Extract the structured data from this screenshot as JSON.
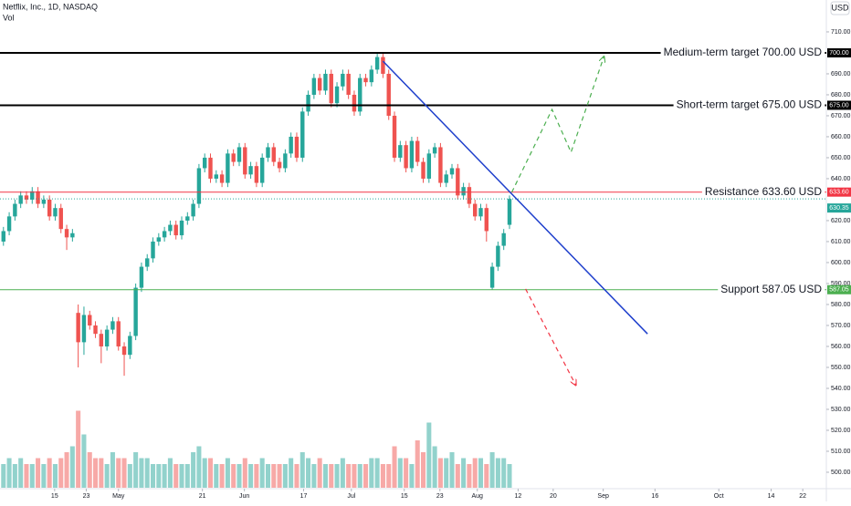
{
  "chart_data": {
    "type": "candlestick",
    "title": "Netflix, Inc., 1D, NASDAQ",
    "subtitle": "Vol",
    "currency": "USD",
    "up_color": "#26a69a",
    "down_color": "#ef5350",
    "grid": false,
    "xlim": [
      -0.6,
      143.1
    ],
    "ylim": [
      492.6,
      725.2
    ],
    "yticks": [
      {
        "value": 500,
        "label": "500.00"
      },
      {
        "value": 510,
        "label": "510.00"
      },
      {
        "value": 520,
        "label": "520.00"
      },
      {
        "value": 530,
        "label": "530.00"
      },
      {
        "value": 540,
        "label": "540.00"
      },
      {
        "value": 550,
        "label": "550.00"
      },
      {
        "value": 560,
        "label": "560.00"
      },
      {
        "value": 570,
        "label": "570.00"
      },
      {
        "value": 580,
        "label": "580.00"
      },
      {
        "value": 590,
        "label": "590.00"
      },
      {
        "value": 600,
        "label": "600.00"
      },
      {
        "value": 610,
        "label": "610.00"
      },
      {
        "value": 620,
        "label": "620.00"
      },
      {
        "value": 640,
        "label": "640.00"
      },
      {
        "value": 650,
        "label": "650.00"
      },
      {
        "value": 660,
        "label": "660.00"
      },
      {
        "value": 670,
        "label": "670.00"
      },
      {
        "value": 680,
        "label": "680.00"
      },
      {
        "value": 690,
        "label": "690.00"
      },
      {
        "value": 710,
        "label": "710.00"
      }
    ],
    "xticks": [
      {
        "value": 8.9,
        "label": "15"
      },
      {
        "value": 14.4,
        "label": "23"
      },
      {
        "value": 20,
        "label": "May"
      },
      {
        "value": 34.6,
        "label": "21"
      },
      {
        "value": 41.9,
        "label": "Jun"
      },
      {
        "value": 52.2,
        "label": "17"
      },
      {
        "value": 60.5,
        "label": "Jul"
      },
      {
        "value": 69.7,
        "label": "15"
      },
      {
        "value": 75.9,
        "label": "23"
      },
      {
        "value": 82.4,
        "label": "Aug"
      },
      {
        "value": 89.5,
        "label": "12"
      },
      {
        "value": 95.6,
        "label": "20"
      },
      {
        "value": 104.3,
        "label": "Sep"
      },
      {
        "value": 113.3,
        "label": "16"
      },
      {
        "value": 124.4,
        "label": "Oct"
      },
      {
        "value": 133.5,
        "label": "14"
      },
      {
        "value": 139,
        "label": "22"
      }
    ],
    "candles": [
      [
        610,
        617,
        608,
        615
      ],
      [
        615,
        624,
        613,
        622
      ],
      [
        622,
        630,
        620,
        628
      ],
      [
        628,
        634,
        626,
        632
      ],
      [
        632,
        634,
        628,
        630
      ],
      [
        630,
        636,
        628,
        634
      ],
      [
        634,
        636,
        626,
        628
      ],
      [
        628,
        632,
        626,
        630
      ],
      [
        630,
        632,
        620,
        622
      ],
      [
        622,
        628,
        620,
        626
      ],
      [
        626,
        628,
        614,
        616
      ],
      [
        616,
        618,
        606,
        612
      ],
      [
        612,
        616,
        610,
        614
      ],
      [
        576,
        580,
        550,
        562
      ],
      [
        562,
        579,
        556,
        575
      ],
      [
        575,
        577,
        568,
        570
      ],
      [
        570,
        572,
        564,
        566
      ],
      [
        566,
        568,
        552,
        560
      ],
      [
        560,
        570,
        558,
        568
      ],
      [
        568,
        574,
        566,
        572
      ],
      [
        572,
        574,
        558,
        560
      ],
      [
        560,
        562,
        546,
        556
      ],
      [
        556,
        567,
        554,
        565
      ],
      [
        565,
        590,
        563,
        588
      ],
      [
        588,
        600,
        586,
        598
      ],
      [
        598,
        604,
        596,
        602
      ],
      [
        602,
        612,
        600,
        610
      ],
      [
        610,
        614,
        608,
        612
      ],
      [
        612,
        617,
        610,
        615
      ],
      [
        615,
        620,
        613,
        618
      ],
      [
        618,
        620,
        611,
        613
      ],
      [
        613,
        622,
        611,
        620
      ],
      [
        620,
        624,
        618,
        622
      ],
      [
        622,
        630,
        620,
        628
      ],
      [
        628,
        647,
        626,
        645
      ],
      [
        645,
        652,
        643,
        650
      ],
      [
        650,
        652,
        638,
        640
      ],
      [
        640,
        644,
        638,
        642
      ],
      [
        642,
        644,
        636,
        638
      ],
      [
        638,
        654,
        636,
        652
      ],
      [
        652,
        654,
        646,
        648
      ],
      [
        648,
        657,
        646,
        655
      ],
      [
        655,
        657,
        640,
        642
      ],
      [
        642,
        648,
        640,
        646
      ],
      [
        646,
        648,
        636,
        638
      ],
      [
        638,
        652,
        636,
        650
      ],
      [
        650,
        657,
        648,
        655
      ],
      [
        655,
        657,
        646,
        648
      ],
      [
        648,
        650,
        643,
        645
      ],
      [
        645,
        654,
        643,
        652
      ],
      [
        652,
        662,
        650,
        660
      ],
      [
        660,
        662,
        648,
        650
      ],
      [
        650,
        674,
        648,
        672
      ],
      [
        672,
        682,
        670,
        680
      ],
      [
        680,
        690,
        678,
        688
      ],
      [
        688,
        690,
        680,
        682
      ],
      [
        682,
        692,
        680,
        690
      ],
      [
        690,
        692,
        674,
        676
      ],
      [
        676,
        686,
        674,
        684
      ],
      [
        684,
        692,
        682,
        690
      ],
      [
        690,
        692,
        678,
        680
      ],
      [
        680,
        682,
        670,
        672
      ],
      [
        672,
        690,
        670,
        688
      ],
      [
        688,
        690,
        684,
        686
      ],
      [
        686,
        694,
        684,
        692
      ],
      [
        692,
        700,
        690,
        698
      ],
      [
        698,
        700,
        688,
        690
      ],
      [
        690,
        692,
        668,
        670
      ],
      [
        670,
        672,
        648,
        650
      ],
      [
        650,
        658,
        648,
        656
      ],
      [
        656,
        658,
        643,
        645
      ],
      [
        645,
        660,
        643,
        658
      ],
      [
        658,
        660,
        646,
        648
      ],
      [
        648,
        650,
        638,
        640
      ],
      [
        640,
        654,
        638,
        652
      ],
      [
        652,
        657,
        650,
        655
      ],
      [
        655,
        657,
        636,
        638
      ],
      [
        638,
        644,
        636,
        642
      ],
      [
        642,
        647,
        640,
        645
      ],
      [
        645,
        647,
        630,
        632
      ],
      [
        632,
        638,
        630,
        636
      ],
      [
        636,
        638,
        626,
        628
      ],
      [
        628,
        630,
        620,
        622
      ],
      [
        622,
        628,
        620,
        626
      ],
      [
        626,
        628,
        610,
        615
      ],
      [
        588,
        600,
        587,
        598
      ],
      [
        598,
        610,
        596,
        608
      ],
      [
        608,
        616,
        606,
        614
      ],
      [
        618,
        632,
        616,
        630.35
      ]
    ],
    "volume": [
      4,
      5,
      4,
      5,
      4,
      4,
      5,
      4,
      5,
      4,
      5,
      6,
      7,
      13,
      9,
      6,
      5,
      5,
      4,
      6,
      5,
      5,
      4,
      6,
      5,
      5,
      4,
      4,
      4,
      5,
      4,
      4,
      4,
      6,
      7,
      5,
      5,
      4,
      4,
      5,
      4,
      4,
      5,
      4,
      4,
      5,
      4,
      4,
      4,
      4,
      5,
      4,
      6,
      5,
      4,
      5,
      4,
      4,
      4,
      5,
      4,
      4,
      4,
      4,
      5,
      5,
      4,
      4,
      7,
      5,
      5,
      4,
      8,
      6,
      11,
      7,
      5,
      5,
      6,
      4,
      5,
      4,
      5,
      5,
      4,
      6,
      5,
      5,
      4
    ],
    "levels": [
      {
        "name": "Medium-term target 700.00 USD",
        "value": 700,
        "label": "700.00",
        "color": "#000000"
      },
      {
        "name": "Short-term target 675.00 USD",
        "value": 675,
        "label": "675.00",
        "color": "#000000"
      },
      {
        "name": "Resistance 633.60 USD",
        "value": 633.6,
        "label": "633.60",
        "color": "#f23645"
      },
      {
        "name": "Support 587.05 USD",
        "value": 587.05,
        "label": "587.05",
        "color": "#4caf50"
      }
    ],
    "last_price": {
      "value": 630.35,
      "label": "630.35",
      "color": "#26a69a"
    },
    "trendline": {
      "color": "#1e3fcc",
      "points": [
        [
          66,
          696
        ],
        [
          112,
          566
        ]
      ]
    },
    "bull_path": {
      "color": "#4caf50",
      "points": [
        [
          88.4,
          633.5
        ],
        [
          95.4,
          673
        ],
        [
          98.7,
          652.6
        ],
        [
          104.4,
          698
        ]
      ]
    },
    "bear_path": {
      "color": "#f23645",
      "points": [
        [
          90.8,
          587.4
        ],
        [
          99.5,
          541.7
        ]
      ]
    }
  }
}
